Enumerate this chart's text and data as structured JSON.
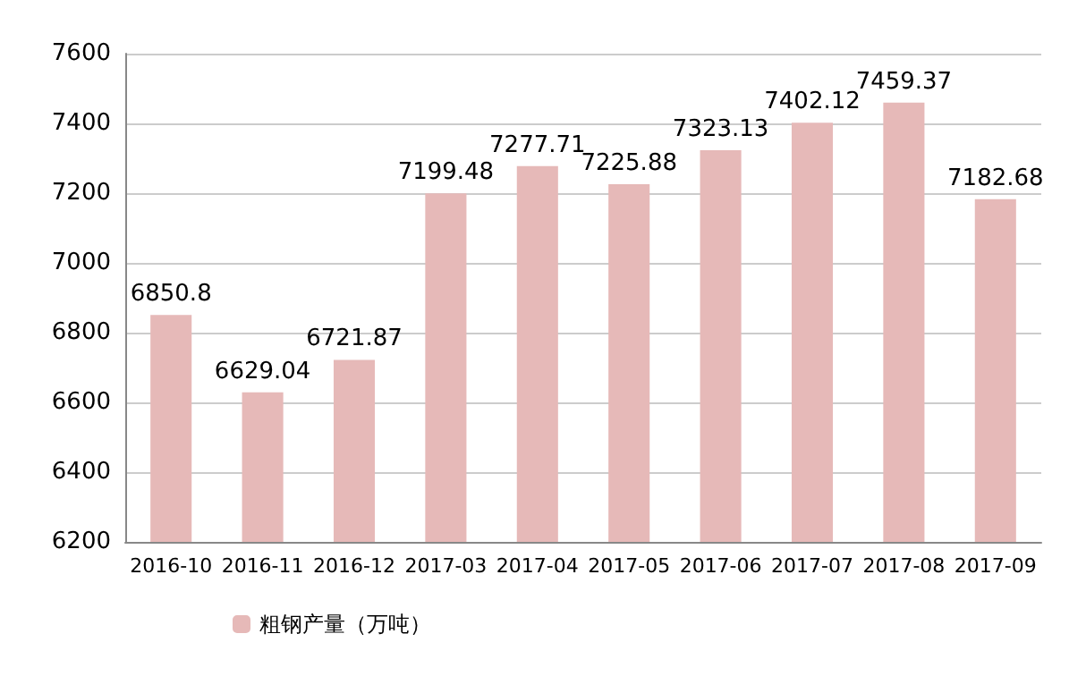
{
  "chart_data": {
    "type": "bar",
    "categories": [
      "2016-10",
      "2016-11",
      "2016-12",
      "2017-03",
      "2017-04",
      "2017-05",
      "2017-06",
      "2017-07",
      "2017-08",
      "2017-09"
    ],
    "series": [
      {
        "name": "粗钢产量（万吨）",
        "color": "#e6b9b8",
        "values": [
          6850.8,
          6629.04,
          6721.87,
          7199.48,
          7277.71,
          7225.88,
          7323.13,
          7402.12,
          7459.37,
          7182.68
        ]
      }
    ],
    "ylim": [
      6200,
      7600
    ],
    "yticks": [
      6200,
      6400,
      6600,
      6800,
      7000,
      7200,
      7400,
      7600
    ],
    "grid": "y",
    "legend": "bottom left",
    "data_labels": true
  }
}
